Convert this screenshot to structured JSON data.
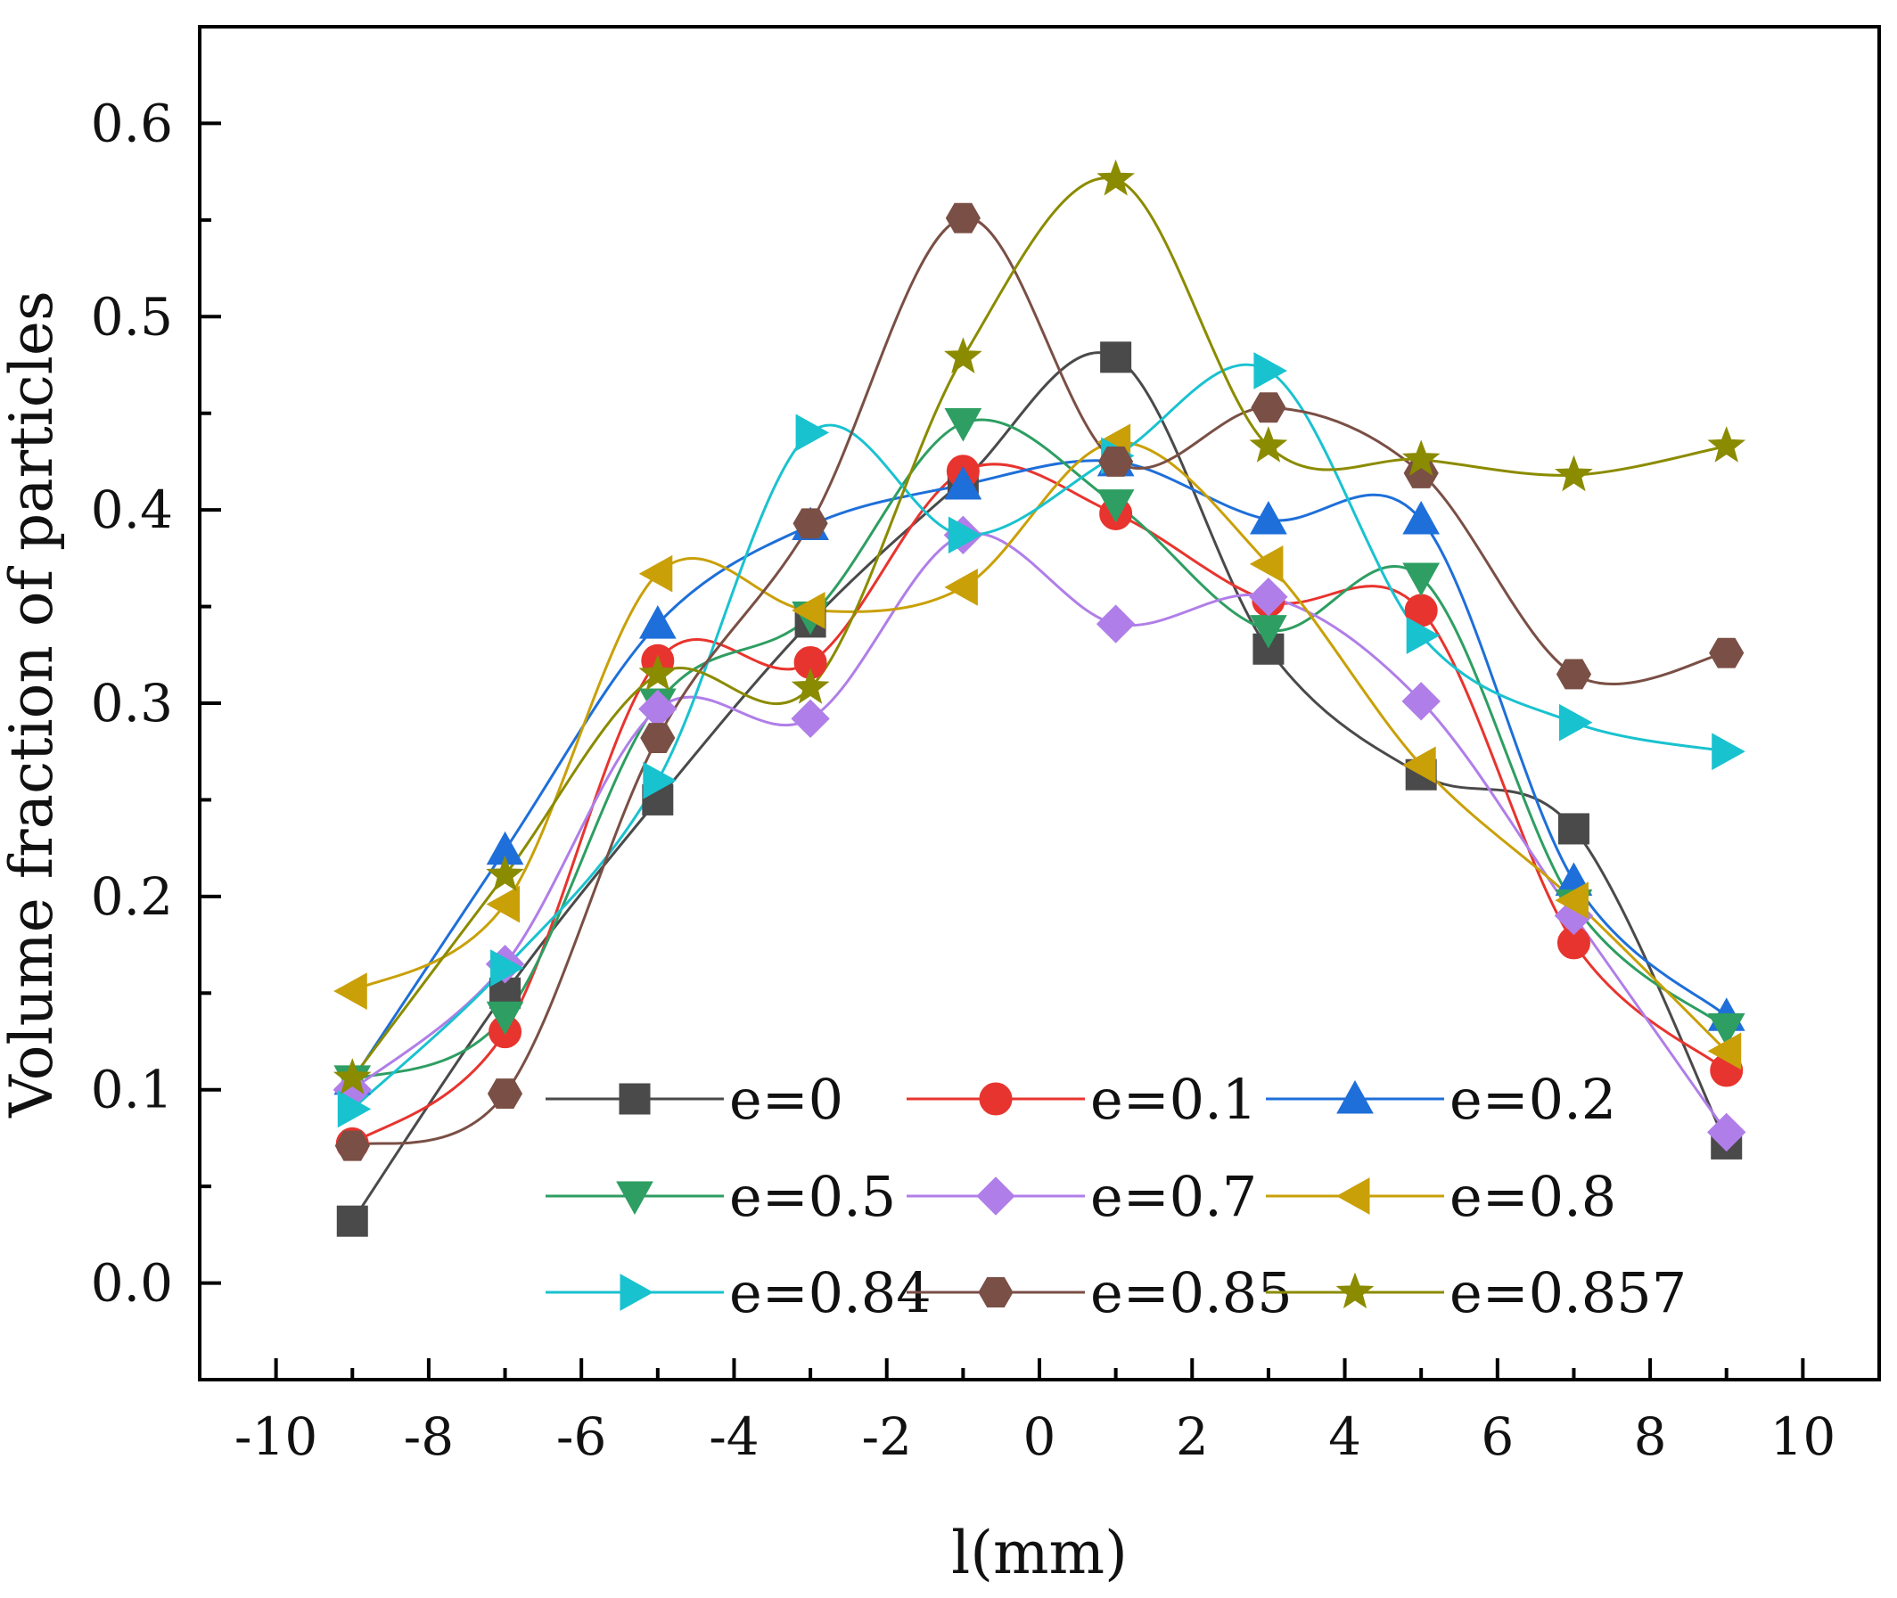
{
  "chart_data": {
    "type": "scatter",
    "xlabel": "l(mm)",
    "ylabel": "Volume fraction of particles",
    "xlim": [
      -11,
      11
    ],
    "ylim": [
      -0.05,
      0.65
    ],
    "x_ticks": [
      -10,
      -8,
      -6,
      -4,
      -2,
      0,
      2,
      4,
      6,
      8,
      10
    ],
    "x_tick_labels": [
      "-10",
      "-8",
      "-6",
      "-4",
      "-2",
      "0",
      "2",
      "4",
      "6",
      "8",
      "10"
    ],
    "y_ticks": [
      0.0,
      0.1,
      0.2,
      0.3,
      0.4,
      0.5,
      0.6
    ],
    "y_tick_labels": [
      "0.0",
      "0.1",
      "0.2",
      "0.3",
      "0.4",
      "0.5",
      "0.6"
    ],
    "x": [
      -9,
      -7,
      -5,
      -3,
      -1,
      1,
      3,
      5,
      7,
      9
    ],
    "curve_style": "smoothed spline through markers",
    "legend_position": "lower-center",
    "series": [
      {
        "name": "e=0",
        "color": "#4a4a4a",
        "marker": "square",
        "values": [
          0.032,
          0.15,
          0.25,
          0.342,
          0.415,
          0.479,
          0.328,
          0.263,
          0.235,
          0.072
        ]
      },
      {
        "name": "e=0.1",
        "color": "#e8342e",
        "marker": "circle",
        "values": [
          0.072,
          0.13,
          0.322,
          0.321,
          0.42,
          0.398,
          0.353,
          0.348,
          0.176,
          0.11
        ]
      },
      {
        "name": "e=0.2",
        "color": "#1e6fd9",
        "marker": "triangle-up",
        "values": [
          0.105,
          0.224,
          0.341,
          0.392,
          0.413,
          0.425,
          0.395,
          0.395,
          0.208,
          0.138
        ]
      },
      {
        "name": "e=0.5",
        "color": "#2e9e62",
        "marker": "triangle-down",
        "values": [
          0.105,
          0.138,
          0.3,
          0.345,
          0.445,
          0.403,
          0.338,
          0.365,
          0.196,
          0.132
        ]
      },
      {
        "name": "e=0.7",
        "color": "#b07ee8",
        "marker": "diamond",
        "values": [
          0.1,
          0.165,
          0.297,
          0.292,
          0.387,
          0.341,
          0.355,
          0.301,
          0.19,
          0.078
        ]
      },
      {
        "name": "e=0.8",
        "color": "#c9a008",
        "marker": "triangle-left",
        "values": [
          0.151,
          0.196,
          0.367,
          0.348,
          0.36,
          0.435,
          0.372,
          0.268,
          0.198,
          0.12
        ]
      },
      {
        "name": "e=0.84",
        "color": "#19c2cf",
        "marker": "triangle-right",
        "values": [
          0.09,
          0.163,
          0.26,
          0.44,
          0.387,
          0.428,
          0.472,
          0.335,
          0.29,
          0.275
        ]
      },
      {
        "name": "e=0.85",
        "color": "#7a4f45",
        "marker": "hexagon",
        "values": [
          0.071,
          0.098,
          0.282,
          0.393,
          0.551,
          0.425,
          0.453,
          0.419,
          0.315,
          0.326
        ]
      },
      {
        "name": "e=0.857",
        "color": "#8b8b00",
        "marker": "star",
        "values": [
          0.106,
          0.211,
          0.315,
          0.308,
          0.479,
          0.571,
          0.433,
          0.426,
          0.418,
          0.433
        ]
      }
    ]
  }
}
